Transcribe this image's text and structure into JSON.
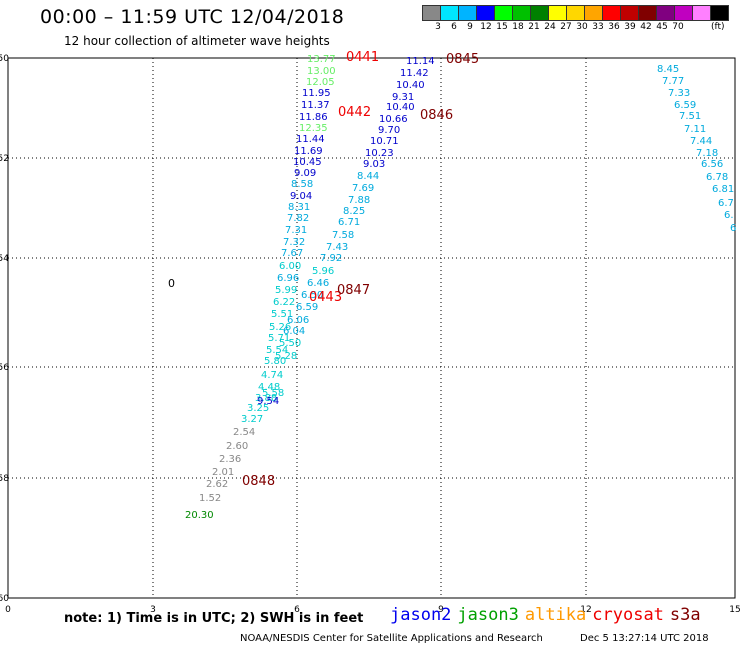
{
  "header": {
    "title": "00:00 – 11:59 UTC 12/04/2018",
    "subtitle": "12 hour collection of altimeter wave heights"
  },
  "color_legend": {
    "colors": [
      "#888888",
      "#00e6ff",
      "#00b4ff",
      "#0000ff",
      "#00ff00",
      "#00c000",
      "#008000",
      "#ffff00",
      "#ffd700",
      "#ffa500",
      "#ff0000",
      "#c00000",
      "#800000",
      "#800080",
      "#c000c0",
      "#ff80ff",
      "#000000"
    ],
    "labels": [
      "3",
      "6",
      "9",
      "12",
      "15",
      "18",
      "21",
      "24",
      "27",
      "30",
      "33",
      "36",
      "39",
      "42",
      "45",
      "70"
    ],
    "unit": "(ft)"
  },
  "axes": {
    "y_ticks": [
      "-50",
      "-52",
      "-54",
      "-56",
      "-58",
      "-60"
    ],
    "x_ticks": [
      "0",
      "3",
      "6",
      "9",
      "12",
      "15"
    ]
  },
  "measurements": [
    {
      "v": "13.77",
      "c": "#66ee66"
    },
    {
      "v": "13.00",
      "c": "#66ee66"
    },
    {
      "v": "12.05",
      "c": "#66ee66"
    },
    {
      "v": "11.95",
      "c": "#0000cc"
    },
    {
      "v": "11.37",
      "c": "#0000cc"
    },
    {
      "v": "11.86",
      "c": "#0000cc"
    },
    {
      "v": "12.35",
      "c": "#66ee66"
    },
    {
      "v": "11.44",
      "c": "#0000cc"
    },
    {
      "v": "11.69",
      "c": "#0000cc"
    },
    {
      "v": "10.45",
      "c": "#0000cc"
    },
    {
      "v": "9.09",
      "c": "#0000cc"
    },
    {
      "v": "8.58",
      "c": "#00aadd"
    },
    {
      "v": "9.04",
      "c": "#0000cc"
    },
    {
      "v": "8.31",
      "c": "#00aadd"
    },
    {
      "v": "7.82",
      "c": "#00aadd"
    },
    {
      "v": "7.31",
      "c": "#00aadd"
    },
    {
      "v": "7.32",
      "c": "#00aadd"
    },
    {
      "v": "7.67",
      "c": "#00aadd"
    },
    {
      "v": "6.00",
      "c": "#00cccc"
    },
    {
      "v": "6.96",
      "c": "#00aadd"
    },
    {
      "v": "5.99",
      "c": "#00cccc"
    },
    {
      "v": "6.22",
      "c": "#00cccc"
    },
    {
      "v": "5.51",
      "c": "#00cccc"
    },
    {
      "v": "5.26",
      "c": "#00cccc"
    },
    {
      "v": "5.71",
      "c": "#00cccc"
    },
    {
      "v": "5.54",
      "c": "#00cccc"
    },
    {
      "v": "5.80",
      "c": "#00cccc"
    },
    {
      "v": "4.74",
      "c": "#00cccc"
    },
    {
      "v": "4.48",
      "c": "#00cccc"
    },
    {
      "v": "3.88",
      "c": "#00cccc"
    },
    {
      "v": "3.25",
      "c": "#00cccc"
    },
    {
      "v": "3.27",
      "c": "#00cccc"
    },
    {
      "v": "2.54",
      "c": "#888888"
    },
    {
      "v": "2.60",
      "c": "#888888"
    },
    {
      "v": "2.36",
      "c": "#888888"
    },
    {
      "v": "2.01",
      "c": "#888888"
    },
    {
      "v": "2.62",
      "c": "#888888"
    },
    {
      "v": "1.52",
      "c": "#888888"
    },
    {
      "v": "20.30",
      "c": "#008800"
    },
    {
      "v": "11.14",
      "c": "#0000cc"
    },
    {
      "v": "11.42",
      "c": "#0000cc"
    },
    {
      "v": "10.40",
      "c": "#0000cc"
    },
    {
      "v": "9.31",
      "c": "#0000cc"
    },
    {
      "v": "10.40",
      "c": "#0000cc"
    },
    {
      "v": "10.66",
      "c": "#0000cc"
    },
    {
      "v": "9.70",
      "c": "#0000cc"
    },
    {
      "v": "10.71",
      "c": "#0000cc"
    },
    {
      "v": "10.23",
      "c": "#0000cc"
    },
    {
      "v": "9.03",
      "c": "#0000cc"
    },
    {
      "v": "8.44",
      "c": "#00aadd"
    },
    {
      "v": "7.69",
      "c": "#00aadd"
    },
    {
      "v": "7.88",
      "c": "#00aadd"
    },
    {
      "v": "8.25",
      "c": "#00aadd"
    },
    {
      "v": "6.71",
      "c": "#00aadd"
    },
    {
      "v": "7.58",
      "c": "#00aadd"
    },
    {
      "v": "7.43",
      "c": "#00aadd"
    },
    {
      "v": "7.92",
      "c": "#00aadd"
    },
    {
      "v": "5.96",
      "c": "#00cccc"
    },
    {
      "v": "6.46",
      "c": "#00aadd"
    },
    {
      "v": "6.50",
      "c": "#00aadd"
    },
    {
      "v": "6.59",
      "c": "#00aadd"
    },
    {
      "v": "6.06",
      "c": "#00aadd"
    },
    {
      "v": "6.04",
      "c": "#00aadd"
    },
    {
      "v": "5.50",
      "c": "#00cccc"
    },
    {
      "v": "5.28",
      "c": "#00cccc"
    },
    {
      "v": "5.58",
      "c": "#00cccc"
    },
    {
      "v": "9.54",
      "c": "#0000cc"
    },
    {
      "v": "8.45",
      "c": "#00aadd"
    },
    {
      "v": "7.77",
      "c": "#00aadd"
    },
    {
      "v": "7.33",
      "c": "#00aadd"
    },
    {
      "v": "6.59",
      "c": "#00aadd"
    },
    {
      "v": "7.51",
      "c": "#00aadd"
    },
    {
      "v": "7.11",
      "c": "#00aadd"
    },
    {
      "v": "7.44",
      "c": "#00aadd"
    },
    {
      "v": "7.18",
      "c": "#00aadd"
    },
    {
      "v": "6.56",
      "c": "#00aadd"
    },
    {
      "v": "6.78",
      "c": "#00aadd"
    },
    {
      "v": "6.81",
      "c": "#00aadd"
    },
    {
      "v": "6.7",
      "c": "#00aadd"
    },
    {
      "v": "6.",
      "c": "#00aadd"
    },
    {
      "v": "6",
      "c": "#00aadd"
    }
  ],
  "pass_labels": [
    {
      "t": "0441",
      "c": "#ee0000"
    },
    {
      "t": "0442",
      "c": "#ee0000"
    },
    {
      "t": "0443",
      "c": "#ee0000"
    },
    {
      "t": "0845",
      "c": "#800000"
    },
    {
      "t": "0846",
      "c": "#800000"
    },
    {
      "t": "0847",
      "c": "#800000"
    },
    {
      "t": "0848",
      "c": "#800000"
    }
  ],
  "misc_label": "0",
  "footer": {
    "note": "note: 1) Time is in UTC; 2) SWH is in feet",
    "satellites": [
      {
        "name": "jason2",
        "color": "#0000ee"
      },
      {
        "name": "jason3",
        "color": "#00a000"
      },
      {
        "name": "altika",
        "color": "#ff9900"
      },
      {
        "name": "cryosat",
        "color": "#ee0000"
      },
      {
        "name": "s3a",
        "color": "#800000"
      }
    ],
    "credit": "NOAA/NESDIS Center for Satellite Applications and Research",
    "timestamp": "Dec  5 13:27:14 UTC 2018"
  }
}
